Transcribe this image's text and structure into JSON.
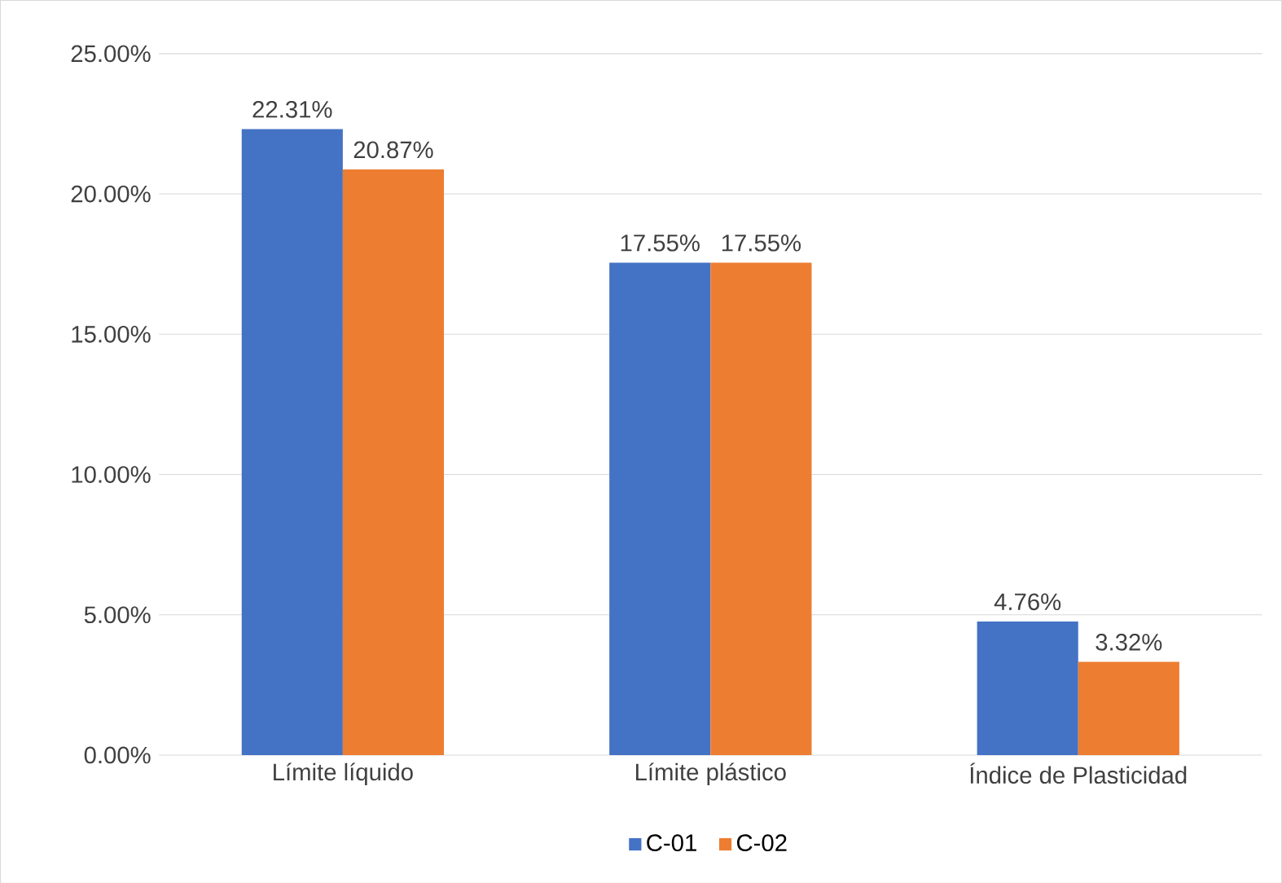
{
  "chart_data": {
    "type": "bar",
    "categories": [
      "Límite líquido",
      "Límite plástico",
      "Índice de Plasticidad"
    ],
    "series": [
      {
        "name": "C-01",
        "color": "#4472c4",
        "values": [
          22.31,
          17.55,
          4.76
        ],
        "value_labels": [
          "22.31%",
          "17.55%",
          "4.76%"
        ]
      },
      {
        "name": "C-02",
        "color": "#ed7d31",
        "values": [
          20.87,
          17.55,
          3.32
        ],
        "value_labels": [
          "20.87%",
          "17.55%",
          "3.32%"
        ]
      }
    ],
    "ylim": [
      0,
      25
    ],
    "yticks": [
      {
        "value": 0,
        "label": "0.00%"
      },
      {
        "value": 5,
        "label": "5.00%"
      },
      {
        "value": 10,
        "label": "10.00%"
      },
      {
        "value": 15,
        "label": "15.00%"
      },
      {
        "value": 20,
        "label": "20.00%"
      },
      {
        "value": 25,
        "label": "25.00%"
      }
    ],
    "grid": "y",
    "legend": "bottom"
  }
}
